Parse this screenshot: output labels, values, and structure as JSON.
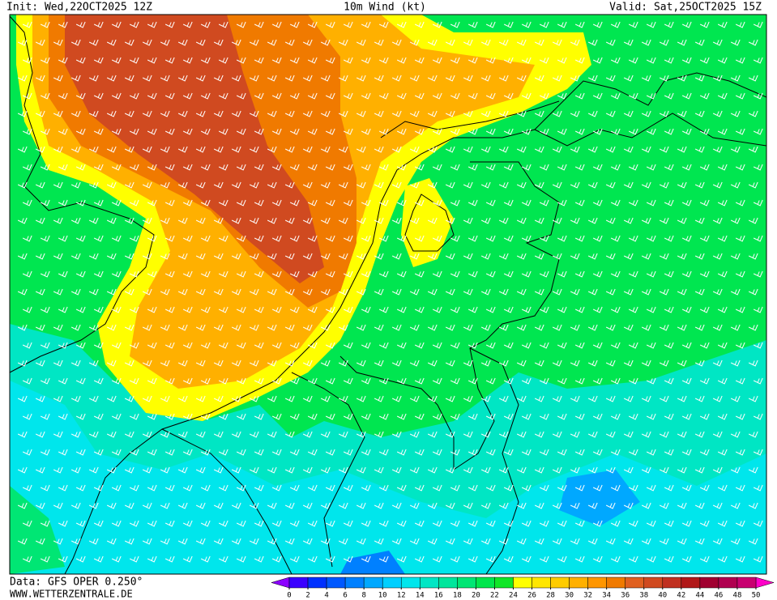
{
  "header": {
    "init": "Init: Wed,22OCT2025 12Z",
    "title": "10m Wind (kt)",
    "valid": "Valid: Sat,25OCT2025 15Z"
  },
  "footer": {
    "data_source": "Data: GFS OPER 0.250°",
    "website": "WWW.WETTERZENTRALE.DE"
  },
  "legend": {
    "ticks": [
      0,
      2,
      4,
      6,
      8,
      10,
      12,
      14,
      16,
      18,
      20,
      22,
      24,
      26,
      28,
      30,
      32,
      34,
      36,
      38,
      40,
      42,
      44,
      46,
      48,
      50
    ],
    "colors": [
      "#3a00ff",
      "#0030ff",
      "#0058ff",
      "#0080ff",
      "#00a8ff",
      "#00cfff",
      "#00e6ec",
      "#00e6c4",
      "#00e69c",
      "#00e674",
      "#00e64c",
      "#10e628",
      "#ffff00",
      "#ffe600",
      "#ffcc00",
      "#ffb000",
      "#ff9600",
      "#f07a00",
      "#e06020",
      "#d04a20",
      "#c03020",
      "#b01818",
      "#a00030",
      "#b00050",
      "#c80070"
    ],
    "under_color": "#8c00ff",
    "over_color": "#ff00c8"
  }
}
